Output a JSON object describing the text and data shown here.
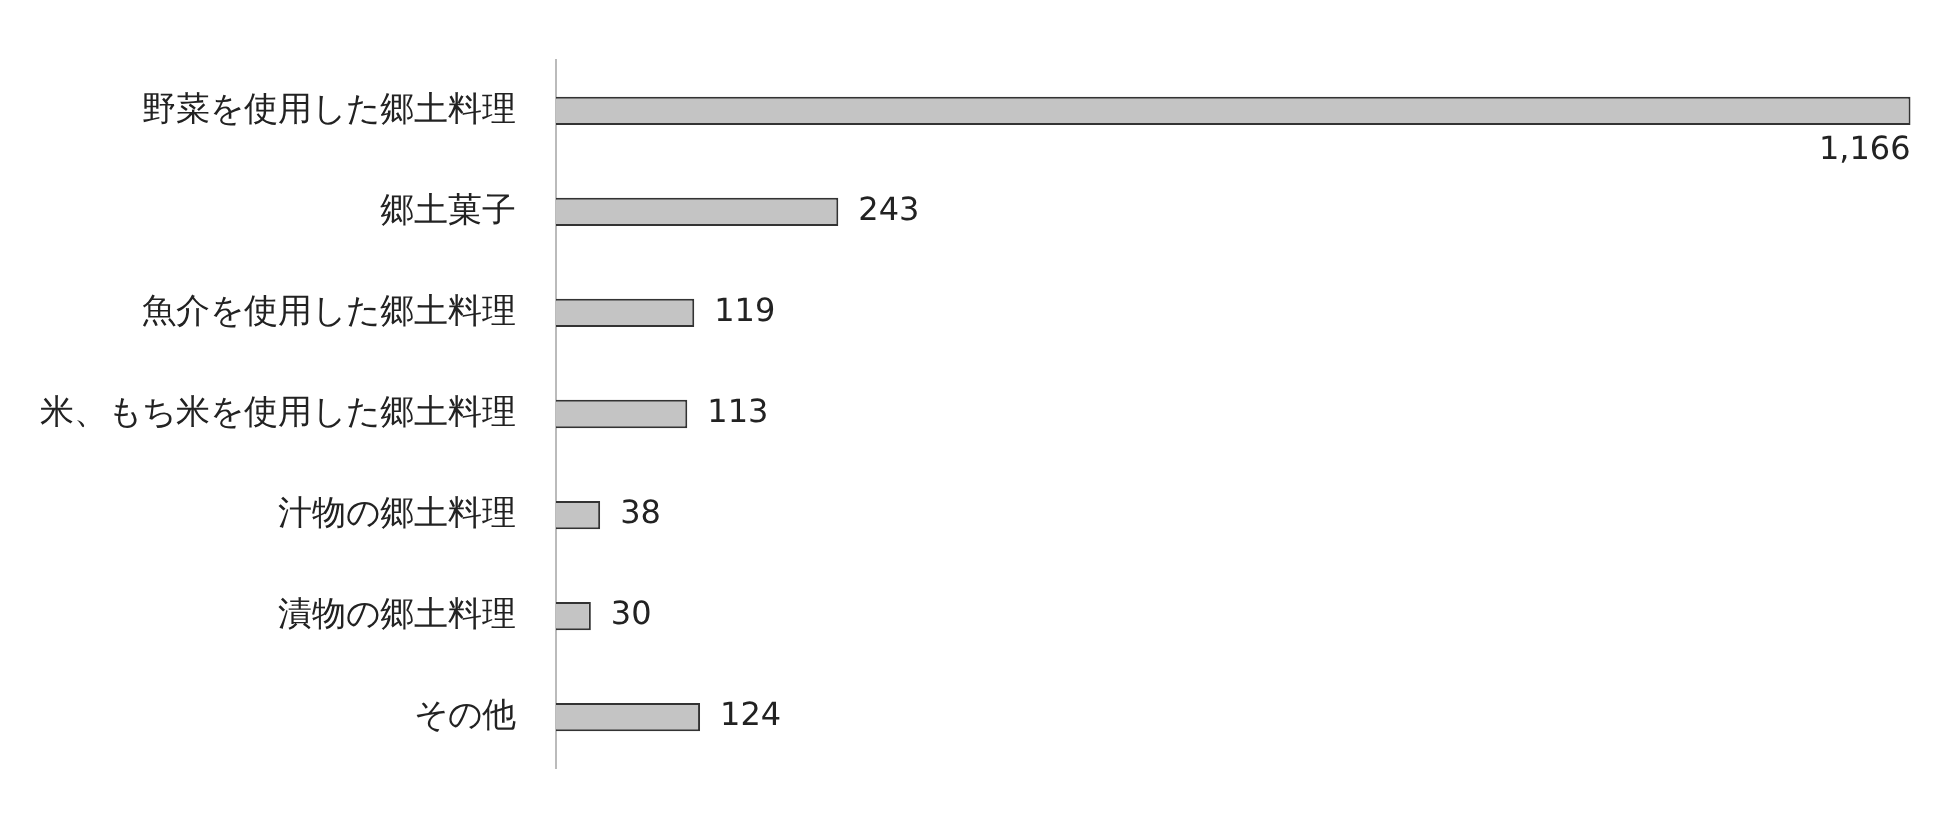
{
  "chart_data": {
    "type": "bar",
    "orientation": "horizontal",
    "value_labels": [
      "1,166",
      "243",
      "119",
      "113",
      "38",
      "30",
      "124"
    ],
    "grid": false,
    "legend": false,
    "categories": [
      "野菜を使用した郷土料理",
      "郷土菓子",
      "魚介を使用した郷土料理",
      "米、もち米を使用した郷土料理",
      "汁物の郷土料理",
      "漬物の郷土料理",
      "その他"
    ],
    "values": [
      1166,
      243,
      119,
      113,
      38,
      30,
      124
    ],
    "color": "#c4c4c4"
  }
}
